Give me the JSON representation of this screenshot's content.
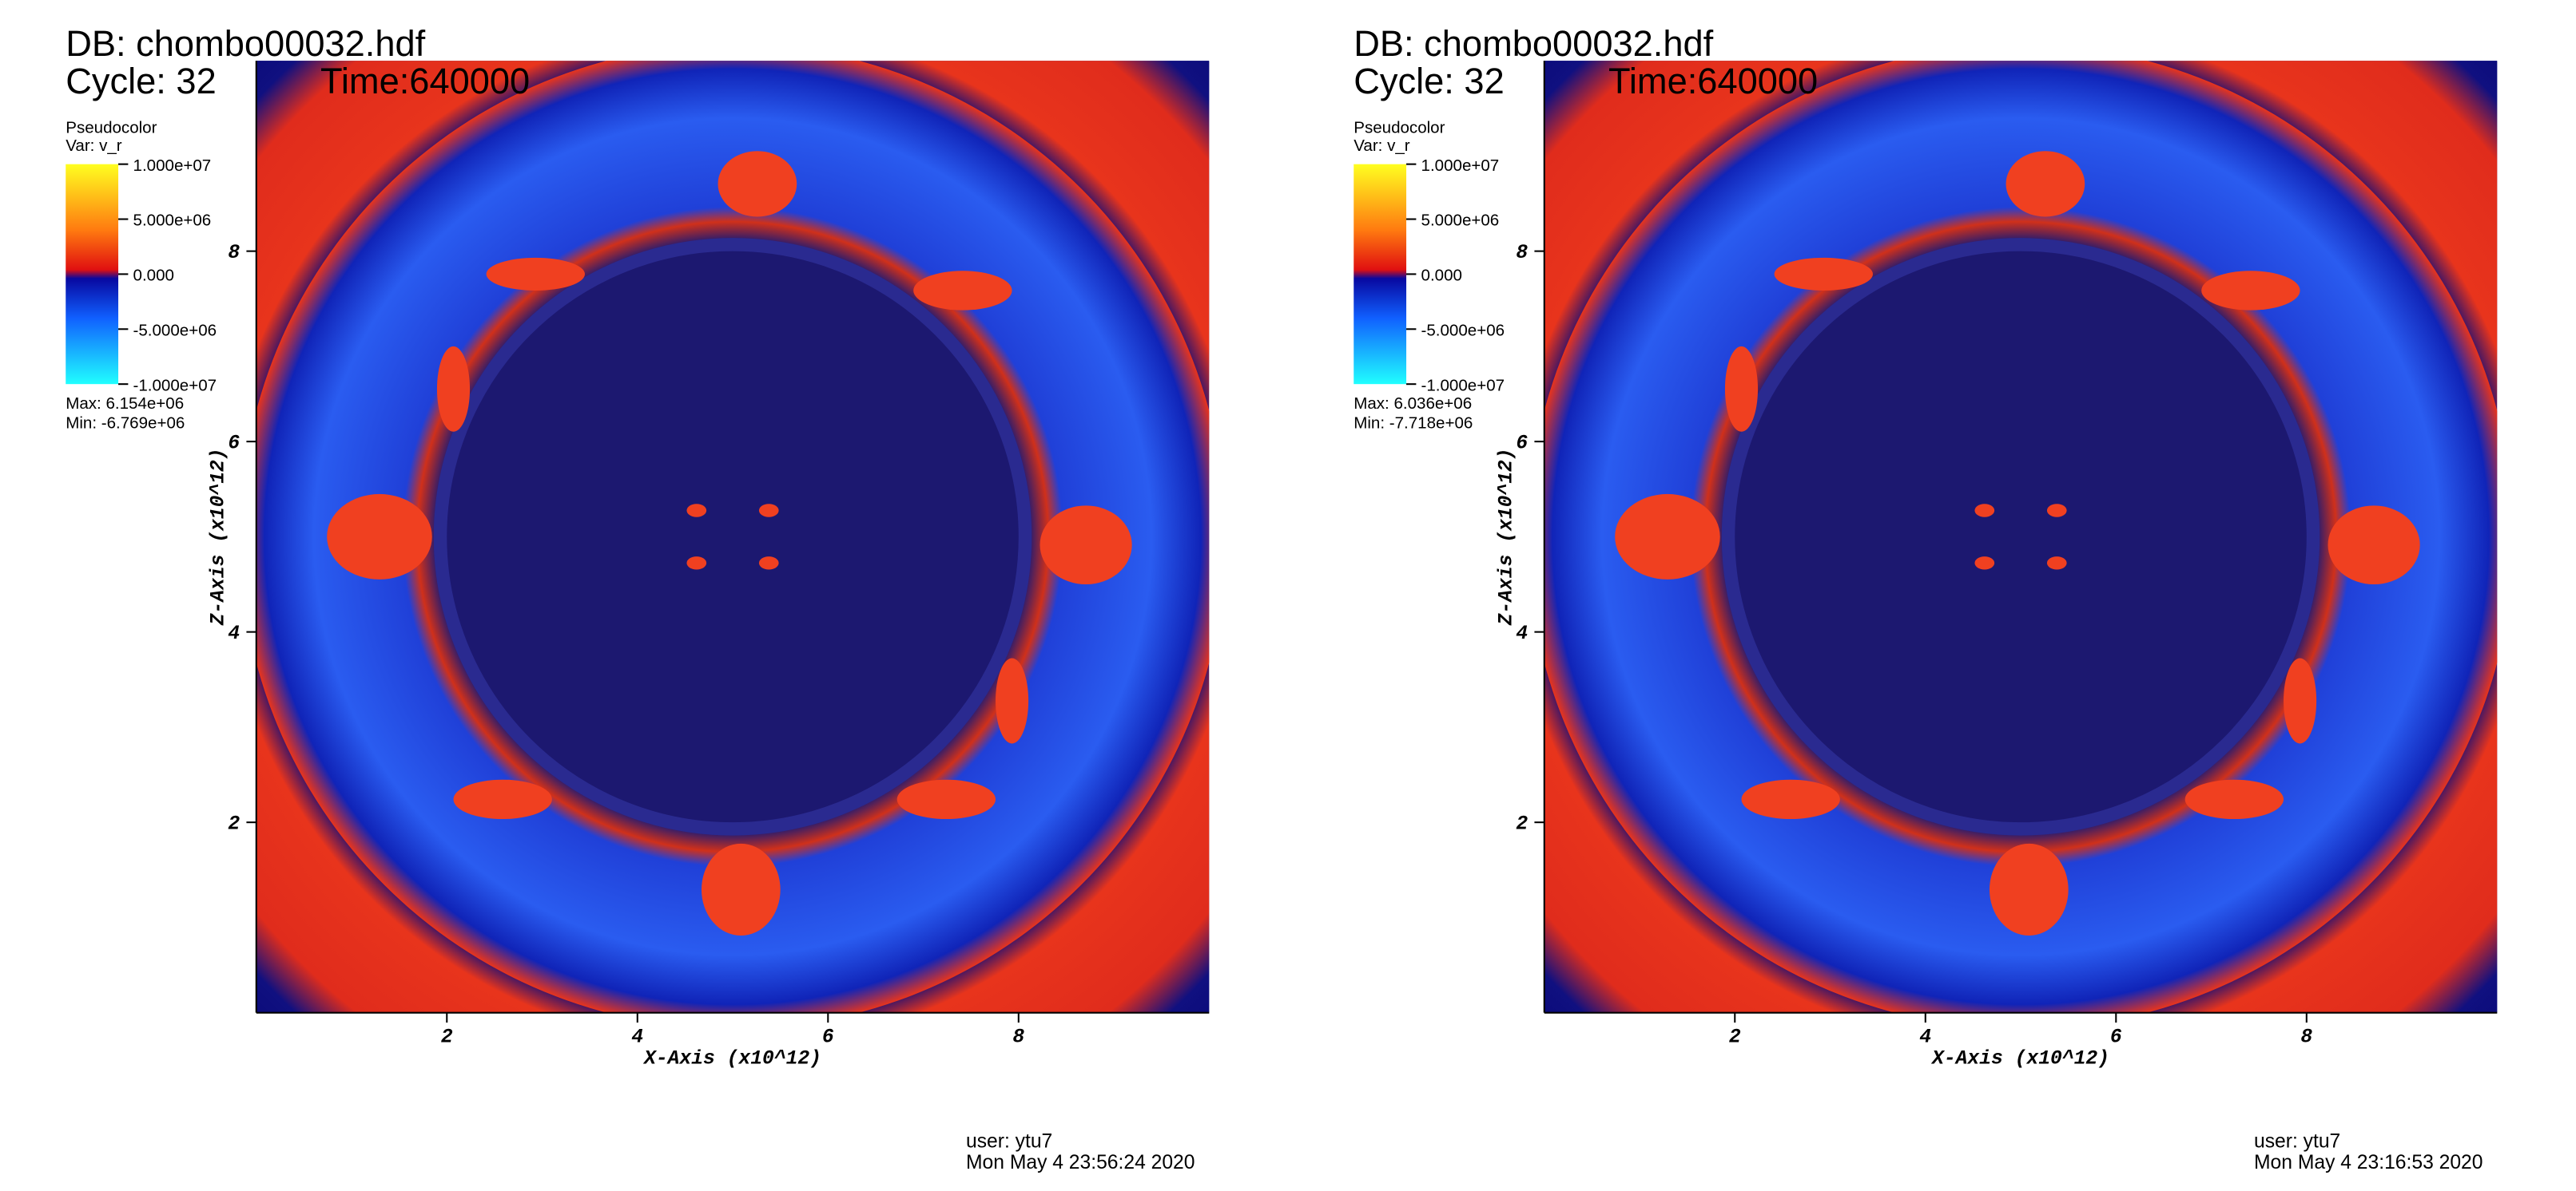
{
  "chart_data": [
    {
      "type": "heatmap",
      "title": "DB: chombo00032.hdf",
      "cycle": "Cycle: 32",
      "time": "Time:640000",
      "legend_title": "Pseudocolor",
      "legend_var": "Var: v_r",
      "clim": [
        -10000000,
        10000000
      ],
      "cticks": [
        {
          "value": 10000000,
          "label": "1.000e+07"
        },
        {
          "value": 5000000,
          "label": "5.000e+06"
        },
        {
          "value": 0,
          "label": "0.000"
        },
        {
          "value": -5000000,
          "label": "-5.000e+06"
        },
        {
          "value": -10000000,
          "label": "-1.000e+07"
        }
      ],
      "max_label": "Max:  6.154e+06",
      "min_label": "Min: -6.769e+06",
      "x_label": "X-Axis (x10^12)",
      "y_label": "Z-Axis (x10^12)",
      "xlim": [
        0,
        10
      ],
      "ylim": [
        0,
        10
      ],
      "xticks": [
        2,
        4,
        6,
        8
      ],
      "yticks": [
        2,
        4,
        6,
        8
      ],
      "user": "user: ytu7",
      "date": "Mon May  4 23:56:24 2020"
    },
    {
      "type": "heatmap",
      "title": "DB: chombo00032.hdf",
      "cycle": "Cycle: 32",
      "time": "Time:640000",
      "legend_title": "Pseudocolor",
      "legend_var": "Var: v_r",
      "clim": [
        -10000000,
        10000000
      ],
      "cticks": [
        {
          "value": 10000000,
          "label": "1.000e+07"
        },
        {
          "value": 5000000,
          "label": "5.000e+06"
        },
        {
          "value": 0,
          "label": "0.000"
        },
        {
          "value": -5000000,
          "label": "-5.000e+06"
        },
        {
          "value": -10000000,
          "label": "-1.000e+07"
        }
      ],
      "max_label": "Max:  6.036e+06",
      "min_label": "Min: -7.718e+06",
      "x_label": "X-Axis (x10^12)",
      "y_label": "Z-Axis (x10^12)",
      "xlim": [
        0,
        10
      ],
      "ylim": [
        0,
        10
      ],
      "xticks": [
        2,
        4,
        6,
        8
      ],
      "yticks": [
        2,
        4,
        6,
        8
      ],
      "user": "user: ytu7",
      "date": "Mon May  4 23:16:53 2020"
    }
  ]
}
